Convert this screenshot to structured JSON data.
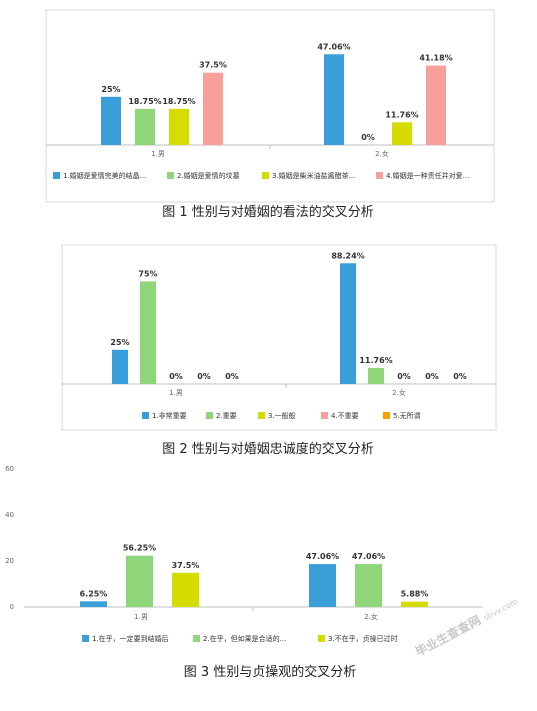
{
  "chart_data": [
    {
      "type": "bar",
      "title": "图 1  性别与对婚姻的看法的交叉分析",
      "categories": [
        "1.男",
        "2.女"
      ],
      "y_unit": "%",
      "series": [
        {
          "name": "1.婚姻是爱情完美的结晶...",
          "color": "#3a9fd8",
          "values": [
            25,
            47.06
          ]
        },
        {
          "name": "2.婚姻是爱情的坟墓",
          "color": "#8fd67a",
          "values": [
            18.75,
            0
          ]
        },
        {
          "name": "3.婚姻是柴米油盐酱醋茶...",
          "color": "#d6db00",
          "values": [
            18.75,
            11.76
          ]
        },
        {
          "name": "4.婚姻是一种责任并对爱...",
          "color": "#f7a09b",
          "values": [
            37.5,
            41.18
          ]
        }
      ],
      "data_labels": [
        [
          "25%",
          "47.06%"
        ],
        [
          "18.75%",
          "0%"
        ],
        [
          "18.75%",
          "11.76%"
        ],
        [
          "37.5%",
          "41.18%"
        ]
      ],
      "legend_position": "bottom",
      "grid": false
    },
    {
      "type": "bar",
      "title": "图  2 性别与对婚姻忠诚度的交叉分析",
      "categories": [
        "1.男",
        "2.女"
      ],
      "y_unit": "%",
      "series": [
        {
          "name": "1.非常重要",
          "color": "#3a9fd8",
          "values": [
            25,
            88.24
          ]
        },
        {
          "name": "2.重要",
          "color": "#8fd67a",
          "values": [
            75,
            11.76
          ]
        },
        {
          "name": "3.一般般",
          "color": "#d6db00",
          "values": [
            0,
            0
          ]
        },
        {
          "name": "4.不重要",
          "color": "#f7a09b",
          "values": [
            0,
            0
          ]
        },
        {
          "name": "5.无所谓",
          "color": "#f5a100",
          "values": [
            0,
            0
          ]
        }
      ],
      "data_labels": [
        [
          "25%",
          "88.24%"
        ],
        [
          "75%",
          "11.76%"
        ],
        [
          "0%",
          "0%"
        ],
        [
          "0%",
          "0%"
        ],
        [
          "0%",
          "0%"
        ]
      ],
      "legend_position": "bottom",
      "grid": false
    },
    {
      "type": "bar",
      "title": "图  3 性别与贞操观的交叉分析",
      "categories": [
        "1.男",
        "2.女"
      ],
      "y_unit": "%",
      "ylim": [
        0,
        60
      ],
      "yticks": [
        "0",
        "20",
        "40",
        "60"
      ],
      "series": [
        {
          "name": "1.在乎，一定要到结婚后",
          "color": "#3a9fd8",
          "values": [
            6.25,
            47.06
          ]
        },
        {
          "name": "2.在乎，但如果是合适的...",
          "color": "#8fd67a",
          "values": [
            56.25,
            47.06
          ]
        },
        {
          "name": "3.不在乎，贞操已过时",
          "color": "#d6db00",
          "values": [
            37.5,
            5.88
          ]
        }
      ],
      "data_labels": [
        [
          "6.25%",
          "47.06%"
        ],
        [
          "56.25%",
          "47.06%"
        ],
        [
          "37.5%",
          "5.88%"
        ]
      ],
      "legend_position": "bottom",
      "grid": false
    }
  ],
  "watermark": {
    "main": "毕业生查查网",
    "sub": "sbvv.com"
  }
}
